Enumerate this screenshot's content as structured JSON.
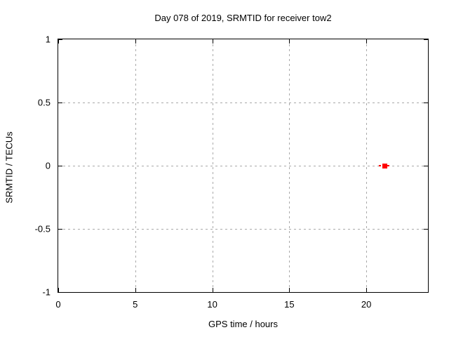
{
  "window": {
    "background": "#ffffff"
  },
  "chart_data": {
    "type": "scatter",
    "title": "Day 078 of 2019, SRMTID for receiver tow2",
    "xlabel": "GPS time / hours",
    "ylabel": "SRMTID / TECUs",
    "xlim": [
      0,
      24
    ],
    "ylim": [
      -1,
      1
    ],
    "xticks": [
      0,
      5,
      10,
      15,
      20
    ],
    "yticks": [
      1,
      0.5,
      0,
      -0.5,
      -1
    ],
    "xtick_labels": [
      "0",
      "5",
      "10",
      "15",
      "20"
    ],
    "ytick_labels": [
      "1",
      "0.5",
      "0",
      "-0.5",
      "-1"
    ],
    "grid": true,
    "legend": "none",
    "colors": {
      "border": "#000000",
      "grid": "#a9a9a9",
      "text": "#000000",
      "series": "#ff0000"
    },
    "series": [
      {
        "name": "SRMTID",
        "style": "dashed-line-with-filled-square-marker",
        "color": "#ff0000",
        "points": [
          {
            "x": 21.2,
            "y": 0
          }
        ],
        "segment_x": [
          20.8,
          21.6
        ],
        "segment_y": 0
      }
    ]
  }
}
